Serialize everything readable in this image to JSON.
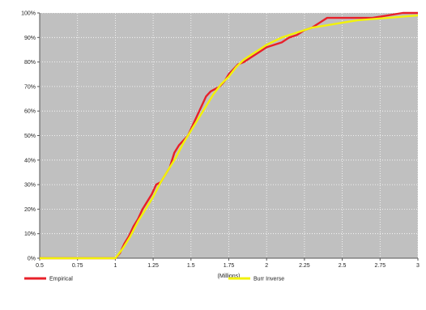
{
  "chart_data": {
    "type": "line",
    "xlabel": "(Millions)",
    "ylabel": "",
    "xlim": [
      0.5,
      3
    ],
    "ylim": [
      0,
      1
    ],
    "xticks": [
      0.5,
      0.75,
      1,
      1.25,
      1.5,
      1.75,
      2,
      2.25,
      2.5,
      2.75,
      3
    ],
    "xtick_labels": [
      "0.5",
      "0.75",
      "1",
      "1.25",
      "1.5",
      "1.75",
      "2",
      "2.25",
      "2.5",
      "2.75",
      "3"
    ],
    "yticks": [
      0,
      0.1,
      0.2,
      0.3,
      0.4,
      0.5,
      0.6,
      0.7,
      0.8,
      0.9,
      1
    ],
    "ytick_labels": [
      "0%",
      "10%",
      "20%",
      "30%",
      "40%",
      "50%",
      "60%",
      "70%",
      "80%",
      "90%",
      "100%"
    ],
    "grid": true,
    "legend_position": "bottom",
    "series": [
      {
        "name": "Empirical",
        "color": "#e8202a",
        "x": [
          0.5,
          1.0,
          1.03,
          1.06,
          1.09,
          1.12,
          1.15,
          1.18,
          1.21,
          1.24,
          1.27,
          1.3,
          1.33,
          1.36,
          1.39,
          1.42,
          1.45,
          1.48,
          1.51,
          1.54,
          1.57,
          1.6,
          1.63,
          1.66,
          1.69,
          1.72,
          1.75,
          1.78,
          1.81,
          1.85,
          1.9,
          1.95,
          2.0,
          2.05,
          2.1,
          2.15,
          2.2,
          2.25,
          2.3,
          2.35,
          2.4,
          2.45,
          2.5,
          2.6,
          2.7,
          2.8,
          2.9,
          3.0
        ],
        "y": [
          0.0,
          0.0,
          0.02,
          0.06,
          0.09,
          0.13,
          0.16,
          0.2,
          0.23,
          0.26,
          0.3,
          0.31,
          0.34,
          0.37,
          0.43,
          0.46,
          0.48,
          0.5,
          0.54,
          0.58,
          0.62,
          0.66,
          0.68,
          0.69,
          0.7,
          0.72,
          0.75,
          0.77,
          0.79,
          0.8,
          0.82,
          0.84,
          0.86,
          0.87,
          0.88,
          0.9,
          0.91,
          0.93,
          0.94,
          0.96,
          0.98,
          0.98,
          0.98,
          0.98,
          0.98,
          0.99,
          1.0,
          1.0
        ]
      },
      {
        "name": "Burr Inverse",
        "color": "#f2f20a",
        "x": [
          0.5,
          1.0,
          1.05,
          1.1,
          1.15,
          1.2,
          1.25,
          1.3,
          1.35,
          1.4,
          1.45,
          1.5,
          1.55,
          1.6,
          1.65,
          1.7,
          1.75,
          1.8,
          1.85,
          1.9,
          1.95,
          2.0,
          2.1,
          2.2,
          2.3,
          2.4,
          2.5,
          2.6,
          2.7,
          2.8,
          2.9,
          3.0
        ],
        "y": [
          0.0,
          0.0,
          0.04,
          0.09,
          0.15,
          0.2,
          0.25,
          0.31,
          0.36,
          0.41,
          0.47,
          0.52,
          0.57,
          0.62,
          0.67,
          0.71,
          0.74,
          0.78,
          0.81,
          0.83,
          0.85,
          0.87,
          0.9,
          0.92,
          0.94,
          0.95,
          0.96,
          0.97,
          0.975,
          0.98,
          0.985,
          0.99
        ]
      }
    ]
  }
}
